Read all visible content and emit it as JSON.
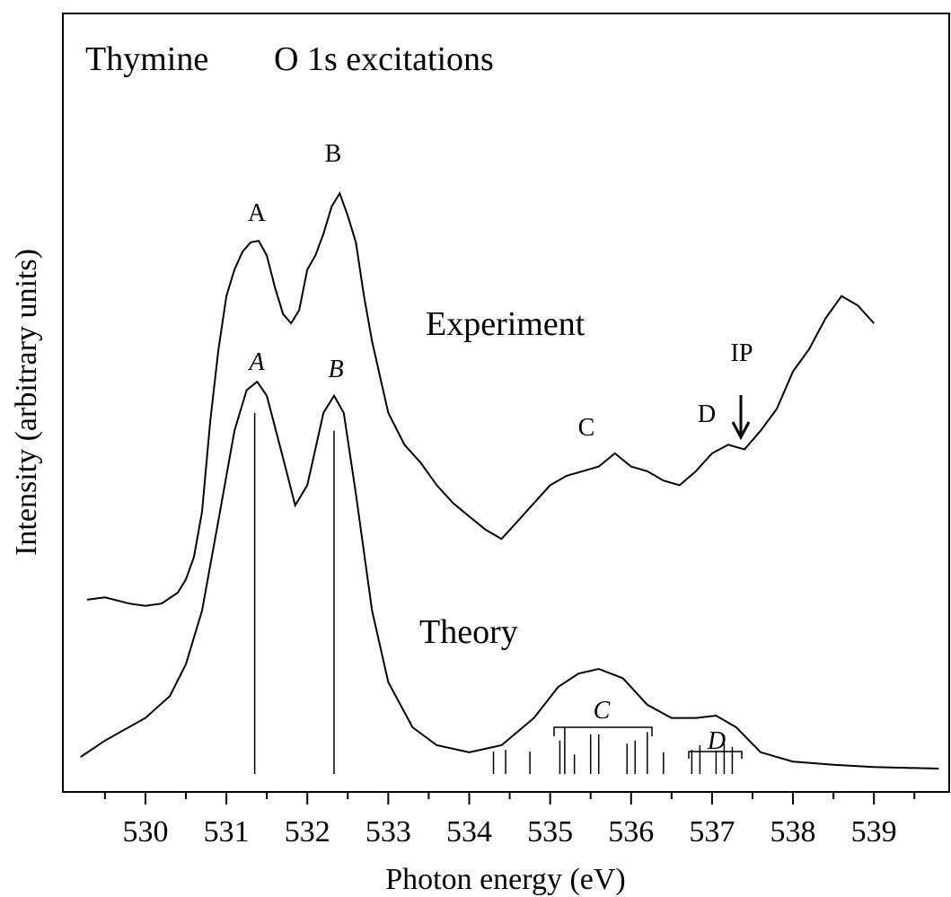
{
  "chart_data": {
    "type": "line",
    "xlabel": "Photon energy (eV)",
    "ylabel": "Intensity (arbitrary units)",
    "xlim": [
      528.98,
      539.93
    ],
    "ylim": [
      0,
      100
    ],
    "xticks": [
      530,
      531,
      532,
      533,
      534,
      535,
      536,
      537,
      538,
      539
    ],
    "xminorticks": [
      529.5,
      530.5,
      531.5,
      532.5,
      533.5,
      534.5,
      535.5,
      536.5,
      537.5,
      538.5,
      539.5
    ],
    "color": "#000000",
    "series": [
      {
        "name": "Experiment",
        "color": "#000000",
        "x": [
          529.28,
          529.5,
          529.8,
          530.0,
          530.2,
          530.4,
          530.5,
          530.6,
          530.7,
          530.8,
          530.9,
          531.0,
          531.1,
          531.2,
          531.3,
          531.4,
          531.5,
          531.6,
          531.7,
          531.8,
          531.9,
          532.0,
          532.1,
          532.2,
          532.3,
          532.4,
          532.5,
          532.6,
          532.7,
          532.8,
          532.9,
          533.0,
          533.2,
          533.4,
          533.6,
          533.8,
          534.0,
          534.2,
          534.4,
          534.6,
          534.8,
          535.0,
          535.2,
          535.4,
          535.6,
          535.8,
          536.0,
          536.2,
          536.4,
          536.6,
          536.8,
          537.0,
          537.2,
          537.4,
          537.6,
          537.8,
          538.0,
          538.2,
          538.4,
          538.6,
          538.8,
          539.0
        ],
        "values": [
          24.7,
          25.0,
          24.2,
          23.9,
          24.2,
          25.6,
          27.3,
          30.2,
          36.0,
          47.5,
          56.7,
          63.7,
          67.1,
          69.4,
          70.6,
          70.8,
          68.9,
          64.8,
          61.4,
          60.2,
          61.9,
          67.1,
          68.9,
          71.7,
          75.2,
          76.9,
          74.0,
          70.6,
          63.7,
          57.9,
          53.3,
          48.7,
          44.6,
          42.3,
          39.4,
          37.1,
          35.4,
          33.7,
          32.5,
          34.8,
          37.1,
          39.4,
          40.6,
          41.2,
          41.8,
          43.5,
          41.8,
          41.2,
          40.0,
          39.4,
          41.2,
          43.5,
          44.6,
          44.0,
          46.4,
          49.2,
          54.0,
          56.9,
          60.8,
          63.7,
          62.5,
          60.2
        ]
      },
      {
        "name": "Theory",
        "color": "#000000",
        "x": [
          529.2,
          529.5,
          530.0,
          530.3,
          530.5,
          530.7,
          530.9,
          531.1,
          531.25,
          531.38,
          531.5,
          531.7,
          531.85,
          532.0,
          532.2,
          532.33,
          532.45,
          532.6,
          532.8,
          533.0,
          533.3,
          533.6,
          534.0,
          534.4,
          534.8,
          535.1,
          535.35,
          535.6,
          535.9,
          536.2,
          536.5,
          536.8,
          537.05,
          537.3,
          537.6,
          538.0,
          538.5,
          539.0,
          539.8
        ],
        "values": [
          4.5,
          6.6,
          9.5,
          12.3,
          16.4,
          23.3,
          34.8,
          46.4,
          51.6,
          52.7,
          50.9,
          42.9,
          36.8,
          39.4,
          48.7,
          50.9,
          48.7,
          38.3,
          23.3,
          14.1,
          8.3,
          6.0,
          5.1,
          6.0,
          9.5,
          13.5,
          15.2,
          15.8,
          14.6,
          11.2,
          9.5,
          9.5,
          9.8,
          8.3,
          5.1,
          3.9,
          3.5,
          3.2,
          3.0
        ]
      }
    ],
    "sticks": {
      "baseline": 2.3,
      "x": [
        531.35,
        532.33,
        534.3,
        534.45,
        534.75,
        535.12,
        535.18,
        535.3,
        535.5,
        535.6,
        535.95,
        536.05,
        536.2,
        536.4,
        536.75,
        536.85,
        537.05,
        537.15,
        537.25
      ],
      "values": [
        46.4,
        44.1,
        2.9,
        3.1,
        2.9,
        4.3,
        6.0,
        2.5,
        5.1,
        5.1,
        3.9,
        4.3,
        5.4,
        2.8,
        3.1,
        3.7,
        3.0,
        3.9,
        3.5
      ]
    },
    "annotations": [
      "Thymine",
      "O 1s excitations",
      "A",
      "B",
      "A",
      "B",
      "Experiment",
      "Theory",
      "C",
      "D",
      "IP",
      "C",
      "D"
    ]
  }
}
